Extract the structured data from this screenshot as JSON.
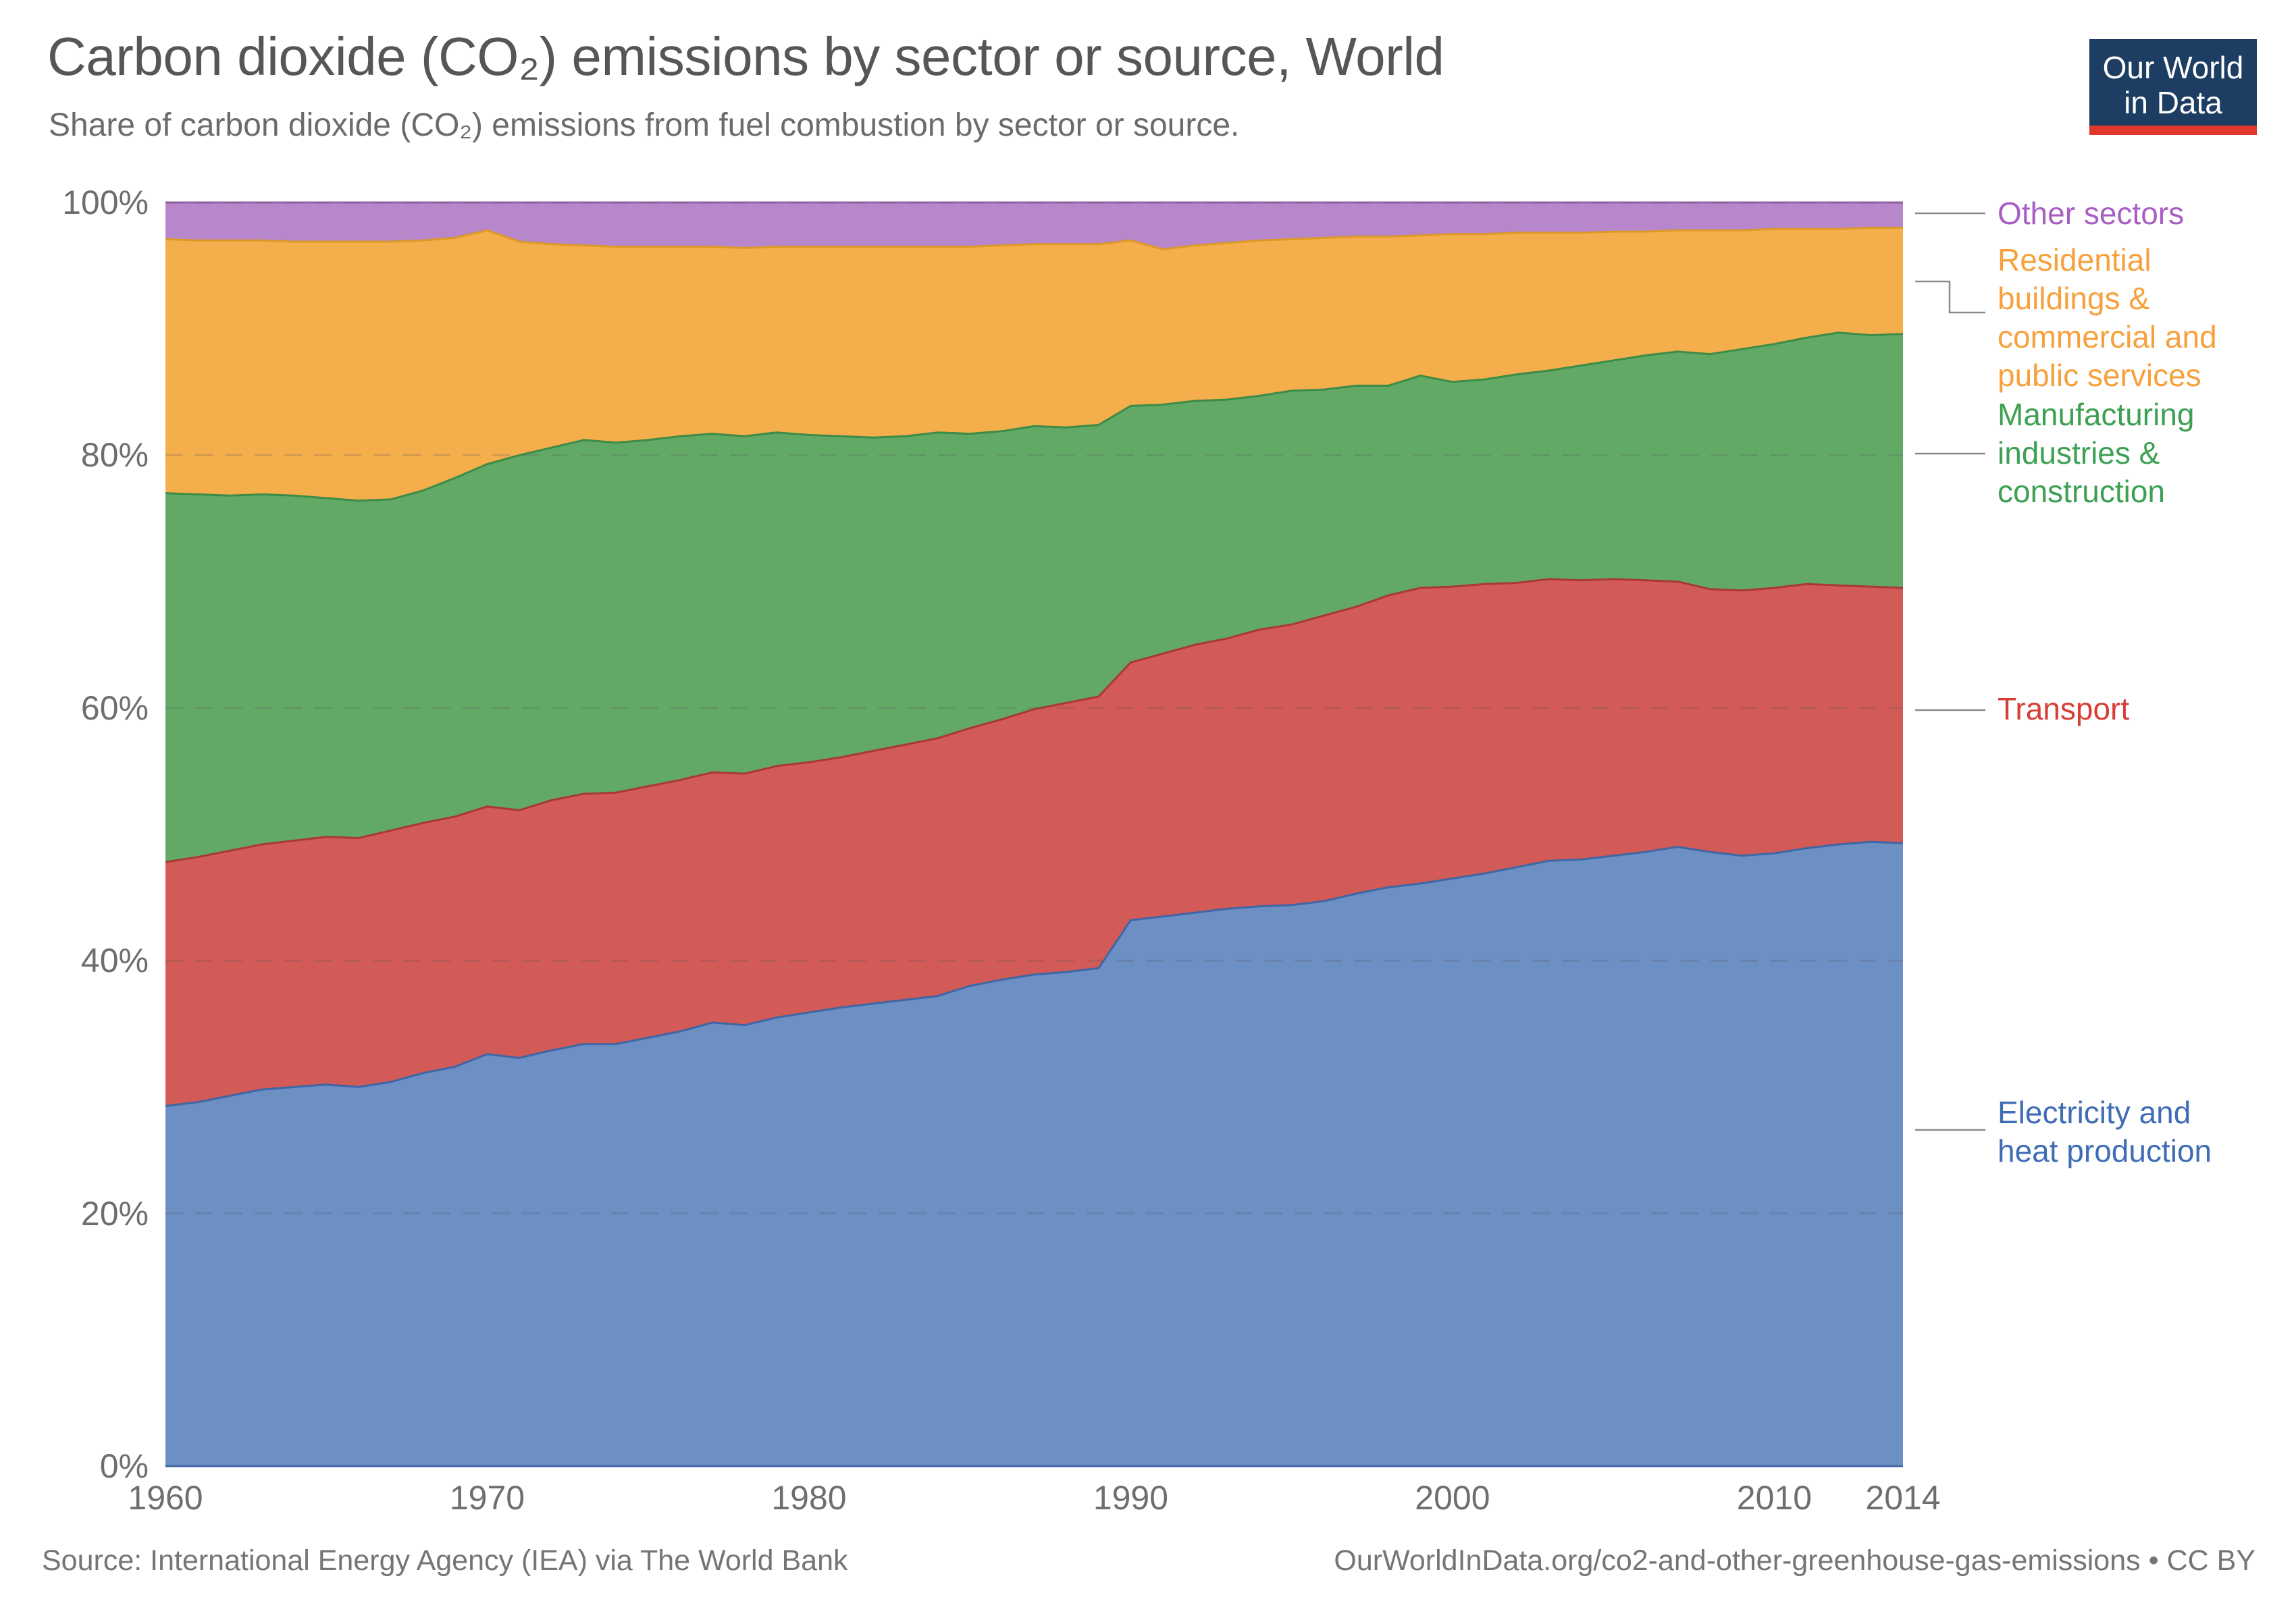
{
  "header": {
    "title": "Carbon dioxide (CO₂) emissions by sector or source, World",
    "subtitle": "Share of carbon dioxide (CO₂) emissions from fuel combustion by sector or source."
  },
  "logo": {
    "line1": "Our World",
    "line2": "in Data",
    "bg_color": "#1d3d63",
    "accent_color": "#e0372e"
  },
  "chart_data": {
    "type": "area",
    "stacked": true,
    "normalized_percent": true,
    "title": "Carbon dioxide (CO₂) emissions by sector or source, World",
    "xlabel": "",
    "ylabel": "",
    "xlim": [
      1960,
      2014
    ],
    "ylim": [
      0,
      100
    ],
    "grid": "dashed horizontal at 20/40/60/80/100",
    "legend_position": "right",
    "x": [
      1960,
      1961,
      1962,
      1963,
      1964,
      1965,
      1966,
      1967,
      1968,
      1969,
      1970,
      1971,
      1972,
      1973,
      1974,
      1975,
      1976,
      1977,
      1978,
      1979,
      1980,
      1981,
      1982,
      1983,
      1984,
      1985,
      1986,
      1987,
      1988,
      1989,
      1990,
      1991,
      1992,
      1993,
      1994,
      1995,
      1996,
      1997,
      1998,
      1999,
      2000,
      2001,
      2002,
      2003,
      2004,
      2005,
      2006,
      2007,
      2008,
      2009,
      2010,
      2011,
      2012,
      2013,
      2014
    ],
    "series": [
      {
        "name": "Electricity and heat production",
        "color": "#6C8FC4",
        "line_color": "#3F66A5",
        "label_color": "#3F6DB5",
        "values": [
          28.5,
          28.8,
          29.3,
          29.8,
          30.0,
          30.2,
          30.0,
          30.4,
          31.1,
          31.6,
          32.6,
          32.3,
          32.9,
          33.4,
          33.4,
          33.9,
          34.4,
          35.1,
          34.9,
          35.5,
          35.9,
          36.3,
          36.6,
          36.9,
          37.2,
          38.0,
          38.5,
          38.9,
          39.1,
          39.4,
          43.2,
          43.5,
          43.8,
          44.1,
          44.3,
          44.4,
          44.7,
          45.3,
          45.8,
          46.1,
          46.5,
          46.9,
          47.4,
          47.9,
          48.0,
          48.3,
          48.6,
          49.0,
          48.6,
          48.3,
          48.5,
          48.9,
          49.2,
          49.4,
          49.3
        ]
      },
      {
        "name": "Transport",
        "color": "#D25A57",
        "line_color": "#A83936",
        "label_color": "#D63E36",
        "values": [
          19.3,
          19.4,
          19.4,
          19.4,
          19.5,
          19.6,
          19.7,
          19.9,
          19.8,
          19.8,
          19.6,
          19.6,
          19.8,
          19.8,
          19.9,
          19.9,
          19.9,
          19.8,
          19.9,
          19.9,
          19.8,
          19.8,
          20.0,
          20.2,
          20.4,
          20.4,
          20.6,
          21.0,
          21.3,
          21.5,
          20.4,
          20.8,
          21.2,
          21.4,
          21.9,
          22.2,
          22.6,
          22.7,
          23.1,
          23.4,
          23.1,
          22.9,
          22.5,
          22.3,
          22.1,
          21.9,
          21.5,
          21.0,
          20.8,
          21.0,
          21.0,
          20.9,
          20.5,
          20.2,
          20.2
        ]
      },
      {
        "name": "Manufacturing industries & construction",
        "color": "#62A966",
        "line_color": "#3C8B46",
        "label_color": "#3DA052",
        "values": [
          29.2,
          28.7,
          28.1,
          27.7,
          27.3,
          26.8,
          26.7,
          26.2,
          26.3,
          26.8,
          27.1,
          28.1,
          27.9,
          28.0,
          27.7,
          27.4,
          27.2,
          26.8,
          26.7,
          26.4,
          25.9,
          25.4,
          24.8,
          24.4,
          24.2,
          23.3,
          22.8,
          22.4,
          21.8,
          21.5,
          20.3,
          19.7,
          19.3,
          18.9,
          18.5,
          18.5,
          17.9,
          17.5,
          16.6,
          16.8,
          16.2,
          16.2,
          16.5,
          16.5,
          17.0,
          17.3,
          17.8,
          18.2,
          18.6,
          19.1,
          19.3,
          19.5,
          20.0,
          19.9,
          20.1
        ]
      },
      {
        "name": "Residential buildings & commercial and public services",
        "color": "#F5AE4C",
        "line_color": "#DC9A26",
        "label_color": "#F7A13C",
        "values": [
          20.1,
          20.1,
          20.2,
          20.1,
          20.1,
          20.3,
          20.5,
          20.4,
          19.8,
          19.0,
          18.5,
          16.9,
          16.1,
          15.4,
          15.5,
          15.3,
          15.0,
          14.8,
          14.9,
          14.7,
          14.9,
          15.0,
          15.1,
          15.0,
          14.7,
          14.8,
          14.7,
          14.4,
          14.5,
          14.3,
          13.1,
          12.3,
          12.3,
          12.4,
          12.3,
          12.0,
          12.0,
          11.8,
          11.8,
          11.1,
          11.7,
          11.5,
          11.2,
          10.9,
          10.5,
          10.2,
          9.8,
          9.6,
          9.8,
          9.4,
          9.1,
          8.6,
          8.2,
          8.5,
          8.4
        ]
      },
      {
        "name": "Other sectors",
        "color": "#B786CB",
        "line_color": "#9A63AE",
        "label_color": "#A85EC3",
        "values": [
          2.9,
          3.0,
          3.0,
          3.0,
          3.1,
          3.1,
          3.1,
          3.1,
          3.0,
          2.8,
          2.2,
          3.1,
          3.3,
          3.4,
          3.5,
          3.5,
          3.5,
          3.5,
          3.6,
          3.5,
          3.5,
          3.5,
          3.5,
          3.5,
          3.5,
          3.5,
          3.4,
          3.3,
          3.3,
          3.3,
          3.0,
          3.7,
          3.4,
          3.2,
          3.0,
          2.9,
          2.8,
          2.7,
          2.7,
          2.6,
          2.5,
          2.5,
          2.4,
          2.4,
          2.4,
          2.3,
          2.3,
          2.2,
          2.2,
          2.2,
          2.1,
          2.1,
          2.1,
          2.0,
          2.0
        ]
      }
    ],
    "xticks": [
      {
        "label": "1960",
        "value": 1960
      },
      {
        "label": "1970",
        "value": 1970
      },
      {
        "label": "1980",
        "value": 1980
      },
      {
        "label": "1990",
        "value": 1990
      },
      {
        "label": "2000",
        "value": 2000
      },
      {
        "label": "2010",
        "value": 2010
      },
      {
        "label": "2014",
        "value": 2014
      }
    ],
    "yticks": [
      {
        "label": "0%",
        "value": 0
      },
      {
        "label": "20%",
        "value": 20
      },
      {
        "label": "40%",
        "value": 40
      },
      {
        "label": "60%",
        "value": 60
      },
      {
        "label": "80%",
        "value": 80
      },
      {
        "label": "100%",
        "value": 100
      }
    ]
  },
  "legend": {
    "items": [
      {
        "label": "Other sectors",
        "lines": [
          "Other sectors"
        ],
        "color": "#A85EC3"
      },
      {
        "label": "Residential buildings & commercial and public services",
        "lines": [
          "Residential",
          "buildings &",
          "commercial and",
          "public services"
        ],
        "color": "#F7A13C"
      },
      {
        "label": "Manufacturing industries & construction",
        "lines": [
          "Manufacturing",
          "industries &",
          "construction"
        ],
        "color": "#3DA052"
      },
      {
        "label": "Transport",
        "lines": [
          "Transport"
        ],
        "color": "#D63E36"
      },
      {
        "label": "Electricity and heat production",
        "lines": [
          "Electricity and",
          "heat production"
        ],
        "color": "#3F6DB5"
      }
    ]
  },
  "footer": {
    "source": "Source: International Energy Agency (IEA) via The World Bank",
    "link": "OurWorldInData.org/co2-and-other-greenhouse-gas-emissions • CC BY"
  }
}
